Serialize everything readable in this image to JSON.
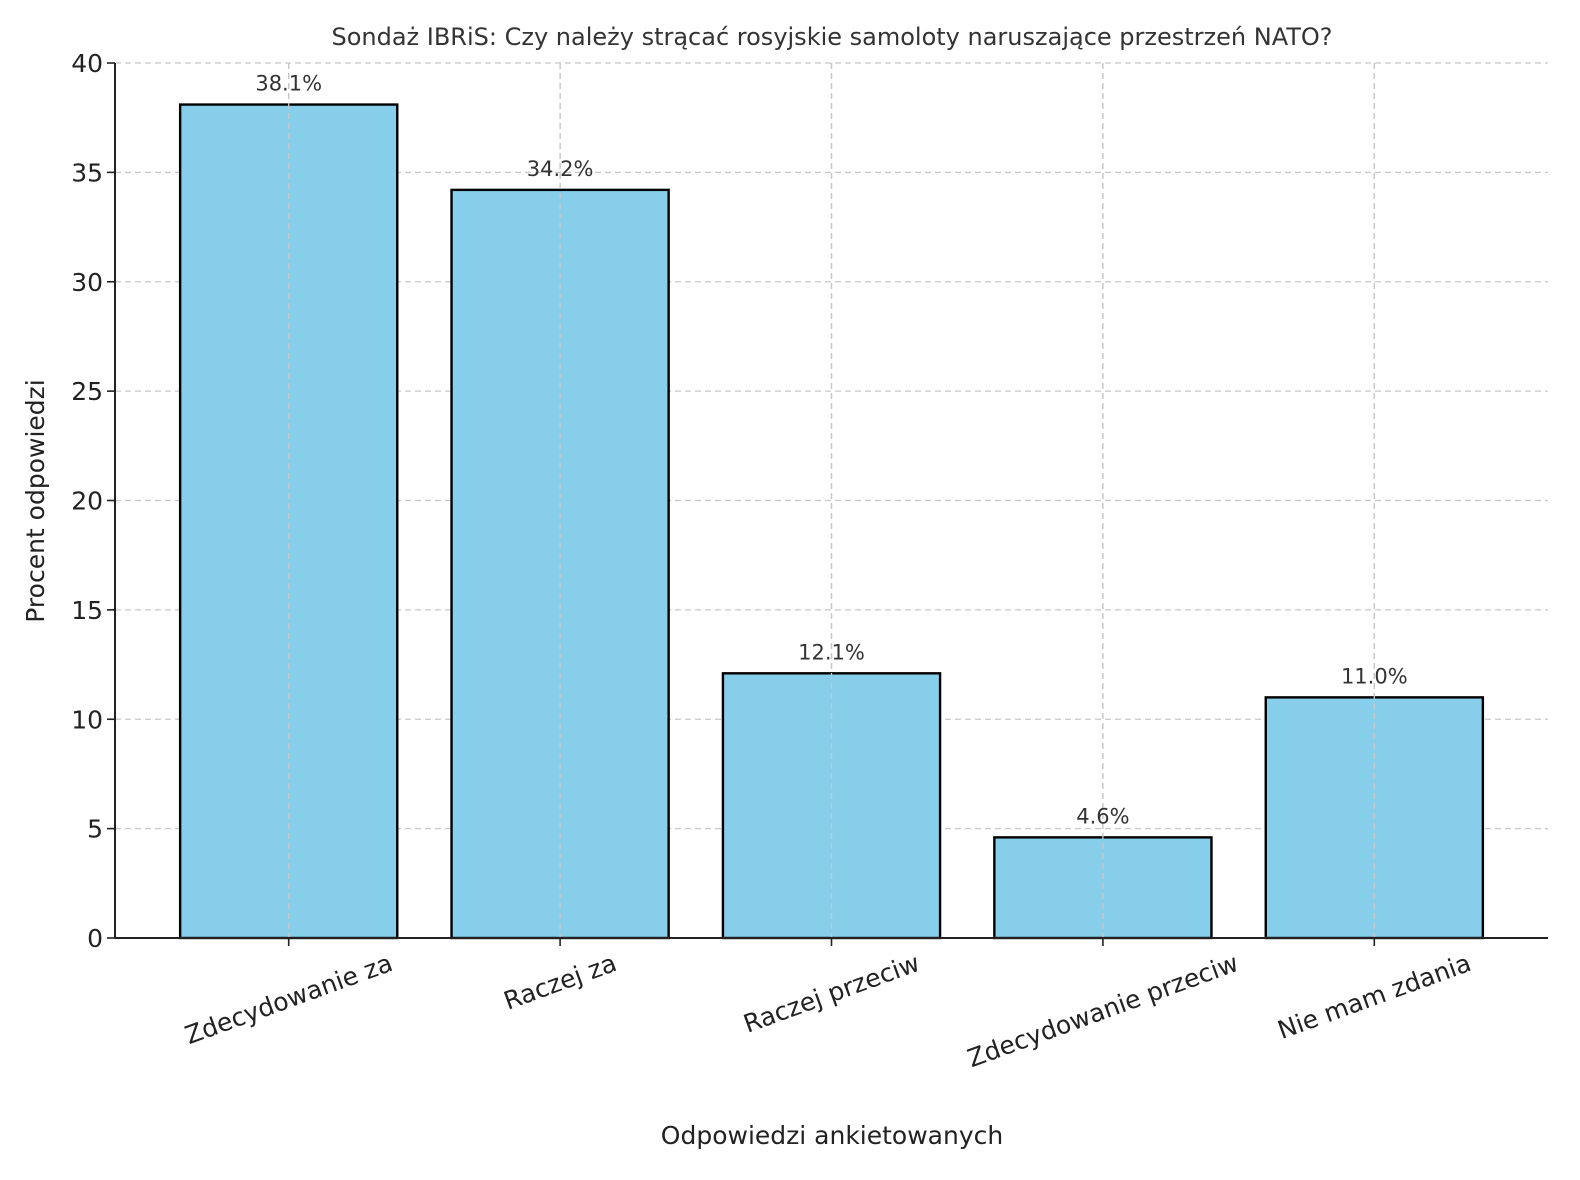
{
  "chart_data": {
    "type": "bar",
    "title": "Sondaż IBRiS: Czy należy strącać rosyjskie samoloty naruszające przestrzeń NATO?",
    "xlabel": "Odpowiedzi ankietowanych",
    "ylabel": "Procent odpowiedzi",
    "categories": [
      "Zdecydowanie za",
      "Raczej za",
      "Raczej przeciw",
      "Zdecydowanie przeciw",
      "Nie mam zdania"
    ],
    "values": [
      38.1,
      34.2,
      12.1,
      4.6,
      11.0
    ],
    "data_labels": [
      "38.1%",
      "34.2%",
      "12.1%",
      "4.6%",
      "11.0%"
    ],
    "ylim": [
      0,
      40
    ],
    "yticks": [
      0,
      5,
      10,
      15,
      20,
      25,
      30,
      35,
      40
    ],
    "grid": true,
    "bar_color": "#87CEEB",
    "edge_color": "#000000",
    "xtick_rotation_deg": 20
  }
}
